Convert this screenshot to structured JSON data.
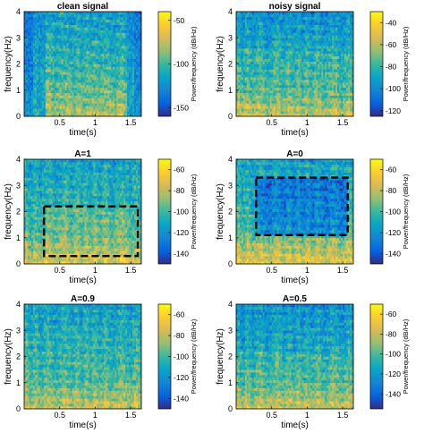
{
  "chart_data": [
    {
      "type": "heatmap",
      "title": "clean signal",
      "xlabel": "time(s)",
      "ylabel": "frequency(Hz)",
      "xlim": [
        0,
        1.65
      ],
      "ylim": [
        0,
        4
      ],
      "xticks": [
        "0.5",
        "1",
        "1.5"
      ],
      "yticks": [
        "0",
        "1",
        "2",
        "3",
        "4"
      ],
      "colorbar": {
        "label": "Power/frequency (dB/Hz)",
        "range": [
          -160,
          -40
        ],
        "ticks": [
          -50,
          -100,
          -150
        ],
        "tick_labels": [
          "-50",
          "-100",
          "-150"
        ]
      },
      "highlight_box": null
    },
    {
      "type": "heatmap",
      "title": "noisy signal",
      "xlabel": "time(s)",
      "ylabel": "frequency(Hz)",
      "xlim": [
        0,
        1.65
      ],
      "ylim": [
        0,
        4
      ],
      "xticks": [
        "0.5",
        "1",
        "1.5"
      ],
      "yticks": [
        "0",
        "1",
        "2",
        "3",
        "4"
      ],
      "colorbar": {
        "label": "Power/frequency (dB/Hz)",
        "range": [
          -125,
          -30
        ],
        "ticks": [
          -40,
          -60,
          -80,
          -100,
          -120
        ],
        "tick_labels": [
          "-40",
          "-60",
          "-80",
          "-100",
          "-120"
        ]
      },
      "highlight_box": null
    },
    {
      "type": "heatmap",
      "title": "A=1",
      "xlabel": "time(s)",
      "ylabel": "frequency(Hz)",
      "xlim": [
        0,
        1.65
      ],
      "ylim": [
        0,
        4
      ],
      "xticks": [
        "0.5",
        "1",
        "1.5"
      ],
      "yticks": [
        "0",
        "1",
        "2",
        "3",
        "4"
      ],
      "colorbar": {
        "label": "Power/frequency (dB/Hz)",
        "range": [
          -150,
          -50
        ],
        "ticks": [
          -60,
          -80,
          -100,
          -120,
          -140
        ],
        "tick_labels": [
          "-60",
          "-80",
          "-100",
          "-120",
          "-140"
        ]
      },
      "highlight_box": {
        "x": [
          0.28,
          1.6
        ],
        "y": [
          0.3,
          2.2
        ]
      }
    },
    {
      "type": "heatmap",
      "title": "A=0",
      "xlabel": "time(s)",
      "ylabel": "frequency(Hz)",
      "xlim": [
        0,
        1.65
      ],
      "ylim": [
        0,
        4
      ],
      "xticks": [
        "0.5",
        "1",
        "1.5"
      ],
      "yticks": [
        "0",
        "1",
        "2",
        "3",
        "4"
      ],
      "colorbar": {
        "label": "Power/frequency (dB/Hz)",
        "range": [
          -150,
          -50
        ],
        "ticks": [
          -60,
          -80,
          -100,
          -120,
          -140
        ],
        "tick_labels": [
          "-60",
          "-80",
          "-100",
          "-120",
          "-140"
        ]
      },
      "highlight_box": {
        "x": [
          0.28,
          1.57
        ],
        "y": [
          1.1,
          3.3
        ]
      }
    },
    {
      "type": "heatmap",
      "title": "A=0.9",
      "xlabel": "time(s)",
      "ylabel": "frequency(Hz)",
      "xlim": [
        0,
        1.65
      ],
      "ylim": [
        0,
        4
      ],
      "xticks": [
        "0.5",
        "1",
        "1.5"
      ],
      "yticks": [
        "0",
        "1",
        "2",
        "3",
        "4"
      ],
      "colorbar": {
        "label": "Power/frequency (dB/Hz)",
        "range": [
          -150,
          -50
        ],
        "ticks": [
          -60,
          -80,
          -100,
          -120,
          -140
        ],
        "tick_labels": [
          "-60",
          "-80",
          "-100",
          "-120",
          "-140"
        ]
      },
      "highlight_box": null
    },
    {
      "type": "heatmap",
      "title": "A=0.5",
      "xlabel": "time(s)",
      "ylabel": "frequency(Hz)",
      "xlim": [
        0,
        1.65
      ],
      "ylim": [
        0,
        4
      ],
      "xticks": [
        "0.5",
        "1",
        "1.5"
      ],
      "yticks": [
        "0",
        "1",
        "2",
        "3",
        "4"
      ],
      "colorbar": {
        "label": "Power/frequency (dB/Hz)",
        "range": [
          -155,
          -50
        ],
        "ticks": [
          -60,
          -80,
          -100,
          -120,
          -140
        ],
        "tick_labels": [
          "-60",
          "-80",
          "-100",
          "-120",
          "-140"
        ]
      },
      "highlight_box": null
    }
  ]
}
